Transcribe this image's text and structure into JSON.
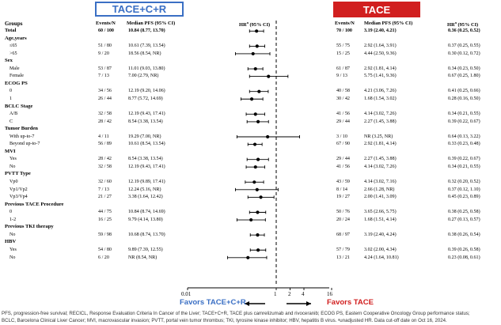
{
  "headers": {
    "left_box": "TACE+C+R",
    "right_box": "TACE",
    "left_box_color": "#3a6fc4",
    "right_box_color": "#d11f1f"
  },
  "columns": {
    "groups": "Groups",
    "events_left": "Events/N",
    "median_left": "Median PFS (95% CI)",
    "hr_center": "HR",
    "hr_center_sup": "a",
    "hr_center_rest": " (95% CI)",
    "events_right": "Events/N",
    "median_right": "Median PFS (95% CI)",
    "hr_right": "HR",
    "hr_right_sup": "a",
    "hr_right_rest": " (95% CI)"
  },
  "rows": [
    {
      "label": "Total",
      "type": "total",
      "events_l": "60 / 100",
      "med_l": "10.84 (8.77, 13.70)",
      "events_r": "70 / 100",
      "med_r": "3.19 (2.40, 4.21)",
      "hr": "0.36 (0.25, 0.52)",
      "est": 0.36,
      "lo": 0.25,
      "hi": 0.52
    },
    {
      "label": "Age,years",
      "type": "section"
    },
    {
      "label": "≤65",
      "type": "sub",
      "events_l": "51 / 80",
      "med_l": "10.61 (7.39, 13.54)",
      "events_r": "55 / 75",
      "med_r": "2.92 (1.64, 3.91)",
      "hr": "0.37 (0.25, 0.55)",
      "est": 0.37,
      "lo": 0.25,
      "hi": 0.55
    },
    {
      "label": ">65",
      "type": "sub",
      "events_l": "9 / 20",
      "med_l": "18.56 (8.54, NR)",
      "events_r": "15 / 25",
      "med_r": "4.44 (2.50, 9.36)",
      "hr": "0.30 (0.12, 0.72)",
      "est": 0.3,
      "lo": 0.12,
      "hi": 0.72
    },
    {
      "label": "Sex",
      "type": "section"
    },
    {
      "label": "Male",
      "type": "sub",
      "events_l": "53 / 87",
      "med_l": "11.01 (9.03, 13.80)",
      "events_r": "61 / 87",
      "med_r": "2.92 (1.81, 4.14)",
      "hr": "0.34 (0.23, 0.50)",
      "est": 0.34,
      "lo": 0.23,
      "hi": 0.5
    },
    {
      "label": "Female",
      "type": "sub",
      "events_l": "7 / 13",
      "med_l": "7.00 (2.79, NR)",
      "events_r": "9 / 13",
      "med_r": "5.75 (1.41, 9.36)",
      "hr": "0.67 (0.25, 1.80)",
      "est": 0.67,
      "lo": 0.25,
      "hi": 1.8
    },
    {
      "label": "ECOG PS",
      "type": "section"
    },
    {
      "label": "0",
      "type": "sub",
      "events_l": "34 / 56",
      "med_l": "12.19 (9.20, 14.06)",
      "events_r": "40 / 58",
      "med_r": "4.21 (3.06, 7.26)",
      "hr": "0.41 (0.25, 0.66)",
      "est": 0.41,
      "lo": 0.25,
      "hi": 0.66
    },
    {
      "label": "1",
      "type": "sub",
      "events_l": "26 / 44",
      "med_l": "8.77 (5.72, 14.69)",
      "events_r": "30 / 42",
      "med_r": "1.68 (1.54, 3.02)",
      "hr": "0.28 (0.16, 0.50)",
      "est": 0.28,
      "lo": 0.16,
      "hi": 0.5
    },
    {
      "label": "BCLC Stage",
      "type": "section"
    },
    {
      "label": "A/B",
      "type": "sub",
      "events_l": "32 / 58",
      "med_l": "12.19 (9.43, 17.41)",
      "events_r": "41 / 56",
      "med_r": "4.14 (3.02, 7.26)",
      "hr": "0.34 (0.21, 0.55)",
      "est": 0.34,
      "lo": 0.21,
      "hi": 0.55
    },
    {
      "label": "C",
      "type": "sub",
      "events_l": "28 / 42",
      "med_l": "8.54 (3.38, 13.54)",
      "events_r": "29 / 44",
      "med_r": "2.27 (1.45, 3.88)",
      "hr": "0.39 (0.22, 0.67)",
      "est": 0.39,
      "lo": 0.22,
      "hi": 0.67
    },
    {
      "label": "Tumor Burden",
      "type": "section"
    },
    {
      "label": "With up-to-7",
      "type": "sub",
      "events_l": "4 / 11",
      "med_l": "19.29 (7.00, NR)",
      "events_r": "3 / 10",
      "med_r": "NR (3.25, NR)",
      "hr": "0.64 (0.13, 3.22)",
      "est": 0.64,
      "lo": 0.13,
      "hi": 3.22
    },
    {
      "label": "Beyond up-to-7",
      "type": "sub",
      "events_l": "56 / 89",
      "med_l": "10.61 (8.54, 13.54)",
      "events_r": "67 / 90",
      "med_r": "2.92 (1.81, 4.14)",
      "hr": "0.33 (0.23, 0.48)",
      "est": 0.33,
      "lo": 0.23,
      "hi": 0.48
    },
    {
      "label": "MVI",
      "type": "section"
    },
    {
      "label": "Yes",
      "type": "sub",
      "events_l": "28 / 42",
      "med_l": "8.54 (3.38, 13.54)",
      "events_r": "29 / 44",
      "med_r": "2.27 (1.45, 3.88)",
      "hr": "0.39 (0.22, 0.67)",
      "est": 0.39,
      "lo": 0.22,
      "hi": 0.67
    },
    {
      "label": "No",
      "type": "sub",
      "events_l": "32 / 58",
      "med_l": "12.19 (9.43, 17.41)",
      "events_r": "41 / 56",
      "med_r": "4.14 (3.02, 7.26)",
      "hr": "0.34 (0.21, 0.55)",
      "est": 0.34,
      "lo": 0.21,
      "hi": 0.55
    },
    {
      "label": "PVTT Type",
      "type": "section"
    },
    {
      "label": "Vp0",
      "type": "sub",
      "events_l": "32 / 60",
      "med_l": "12.19 (9.89, 17.41)",
      "events_r": "43 / 59",
      "med_r": "4.14 (3.02, 7.16)",
      "hr": "0.32 (0.20, 0.52)",
      "est": 0.32,
      "lo": 0.2,
      "hi": 0.52
    },
    {
      "label": "Vp1/Vp2",
      "type": "sub",
      "events_l": "7 / 13",
      "med_l": "12.24 (5.16, NR)",
      "events_r": "8 / 14",
      "med_r": "2.66 (1.28, NR)",
      "hr": "0.37 (0.12, 1.10)",
      "est": 0.37,
      "lo": 0.12,
      "hi": 1.1
    },
    {
      "label": "Vp3/Vp4",
      "type": "sub",
      "events_l": "21 / 27",
      "med_l": "3.38 (1.64, 12.42)",
      "events_r": "19 / 27",
      "med_r": "2.00 (1.41, 3.09)",
      "hr": "0.45 (0.23, 0.89)",
      "est": 0.45,
      "lo": 0.23,
      "hi": 0.89
    },
    {
      "label": "Previous TACE Procedure",
      "type": "section"
    },
    {
      "label": "0",
      "type": "sub",
      "events_l": "44 / 75",
      "med_l": "10.84 (8.74, 14.69)",
      "events_r": "50 / 76",
      "med_r": "3.65 (2.66, 5.75)",
      "hr": "0.38 (0.25, 0.58)",
      "est": 0.38,
      "lo": 0.25,
      "hi": 0.58
    },
    {
      "label": "1-2",
      "type": "sub",
      "events_l": "16 / 25",
      "med_l": "9.79 (4.14, 13.80)",
      "events_r": "20 / 24",
      "med_r": "1.68 (1.51, 4.14)",
      "hr": "0.27 (0.13, 0.57)",
      "est": 0.27,
      "lo": 0.13,
      "hi": 0.57
    },
    {
      "label": "Previous TKI therapy",
      "type": "section"
    },
    {
      "label": "No",
      "type": "sub",
      "events_l": "59 / 98",
      "med_l": "10.68 (8.74, 13.70)",
      "events_r": "68 / 97",
      "med_r": "3.19 (2.40, 4.24)",
      "hr": "0.38 (0.26, 0.54)",
      "est": 0.38,
      "lo": 0.26,
      "hi": 0.54
    },
    {
      "label": "HBV",
      "type": "section"
    },
    {
      "label": "Yes",
      "type": "sub",
      "events_l": "54 / 80",
      "med_l": "9.89 (7.39, 12.55)",
      "events_r": "57 / 79",
      "med_r": "3.02 (2.00, 4.34)",
      "hr": "0.39 (0.26, 0.58)",
      "est": 0.39,
      "lo": 0.26,
      "hi": 0.58
    },
    {
      "label": "No",
      "type": "sub",
      "events_l": "6 / 20",
      "med_l": "NR (8.54, NR)",
      "events_r": "13 / 21",
      "med_r": "4.24 (1.64, 10.81)",
      "hr": "0.23 (0.08, 0.61)",
      "est": 0.23,
      "lo": 0.08,
      "hi": 0.61
    }
  ],
  "axis": {
    "ticks": [
      "0.01",
      "1",
      "2",
      "4",
      "16"
    ],
    "tick_values": [
      0.01,
      1,
      2,
      4,
      16
    ],
    "reference_line": 1
  },
  "favors": {
    "left": "Favors TACE+C+R",
    "right": "Favors TACE",
    "left_color": "#3a6fc4",
    "right_color": "#d11f1f"
  },
  "footnote": {
    "line1": "PFS, progression-free survival; RECICL, Response Evaluation Criteria In Cancer of the Liver; TACE+C+R, TACE plus camrelizumab and rivoceranib; ECOG PS, Eastern Cooperative Oncology Group performance status;",
    "line2": "BCLC, Barcelona Clinical Liver Cancer; MVI, macrovascular invasion; PVTT, portal vein tumor thrombus; TKI, tyrosine kinase inhibitor; HBV, hepatitis B virus. ᵃunadjusted HR. Data cut-off date on Oct 16, 2024."
  }
}
